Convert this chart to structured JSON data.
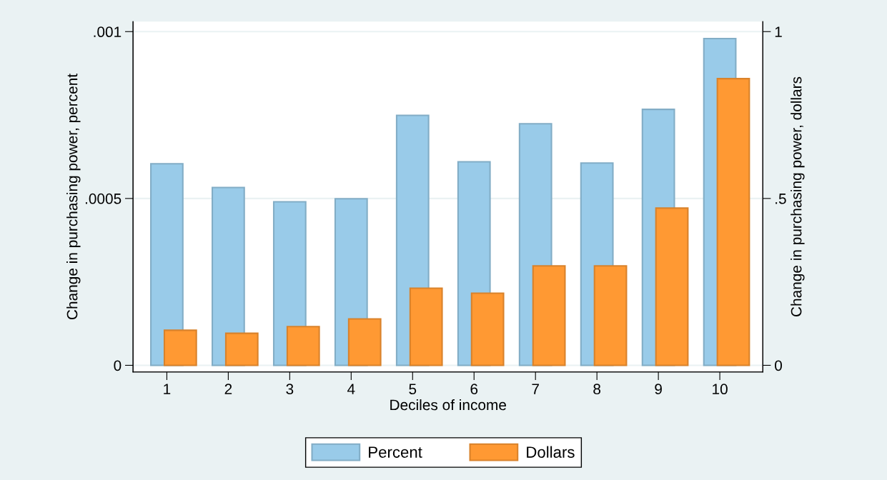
{
  "chart_data": {
    "type": "bar",
    "xlabel": "Deciles of income",
    "ylabel": "Change in purchasing power, percent",
    "y2label": "Change in purchasing power, dollars",
    "categories": [
      "1",
      "2",
      "3",
      "4",
      "5",
      "6",
      "7",
      "8",
      "9",
      "10"
    ],
    "series": [
      {
        "name": "Percent",
        "color": "#99cbe9",
        "values": [
          0.000604,
          0.000533,
          0.00049,
          0.000499,
          0.000749,
          0.00061,
          0.000724,
          0.000606,
          0.000767,
          0.000979
        ]
      },
      {
        "name": "Dollars",
        "color": "#ff9933",
        "axis": "y2",
        "values": [
          0.105,
          0.096,
          0.116,
          0.139,
          0.231,
          0.216,
          0.298,
          0.298,
          0.471,
          0.859
        ]
      }
    ],
    "ylim": [
      -2e-05,
      0.00103
    ],
    "yticks": [
      0,
      {
        "value": 0.0005,
        "label": ".0005"
      },
      {
        "value": 0.001,
        "label": ".001"
      }
    ],
    "y2lim": [
      -0.02,
      1.03
    ],
    "y2ticks": [
      0,
      {
        "value": 0.5,
        "label": ".5"
      },
      1
    ],
    "grid": "y",
    "legend": "bottom"
  }
}
